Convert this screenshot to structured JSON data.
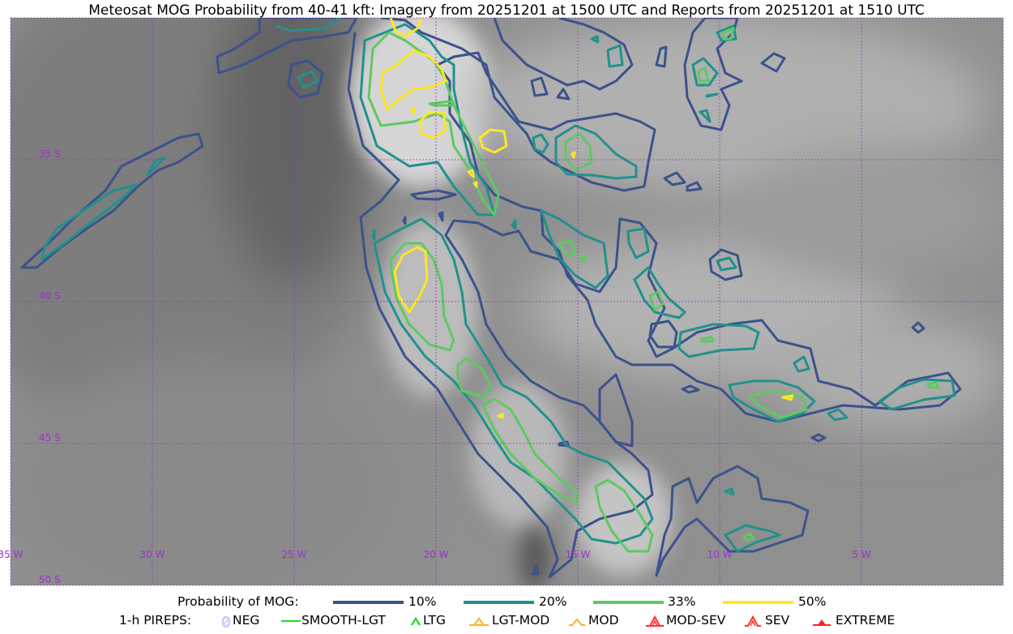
{
  "title": "Meteosat MOG Probability from 40-41 kft: Imagery from 20251201 at 1500 UTC and Reports from 20251201 at 1510 UTC",
  "map": {
    "lat_labels": [
      "35 S",
      "40 S",
      "45 S",
      "50 S"
    ],
    "lon_labels": [
      "35 W",
      "30 W",
      "25 W",
      "20 W",
      "15 W",
      "10 W",
      "5 W"
    ],
    "grid_color": "#9933cc",
    "extent": {
      "lon": [
        -35,
        0
      ],
      "lat": [
        -30,
        -50
      ]
    }
  },
  "legend": {
    "probability_label": "Probability of MOG:",
    "levels": [
      {
        "label": "10%",
        "color": "#3b528b"
      },
      {
        "label": "20%",
        "color": "#21918c"
      },
      {
        "label": "33%",
        "color": "#5ec962"
      },
      {
        "label": "50%",
        "color": "#fde725"
      }
    ],
    "pireps_label": "1-h PIREPS:",
    "pireps": [
      {
        "label": "NEG",
        "icon": "neg-icon",
        "color": "#c8c8ff"
      },
      {
        "label": "SMOOTH-LGT",
        "icon": "smooth-lgt-line-icon",
        "color": "#22dd22"
      },
      {
        "label": "LTG",
        "icon": "ltg-caret-icon",
        "color": "#00dd00"
      },
      {
        "label": "LGT-MOD",
        "icon": "lgt-mod-triangle-icon",
        "color": "#ffb020"
      },
      {
        "label": "MOD",
        "icon": "mod-caret-icon",
        "color": "#ffb020"
      },
      {
        "label": "MOD-SEV",
        "icon": "mod-sev-icon",
        "color": "#ff3030"
      },
      {
        "label": "SEV",
        "icon": "sev-icon",
        "color": "#ff3030"
      },
      {
        "label": "EXTREME",
        "icon": "extreme-icon",
        "color": "#ff2020"
      }
    ]
  }
}
